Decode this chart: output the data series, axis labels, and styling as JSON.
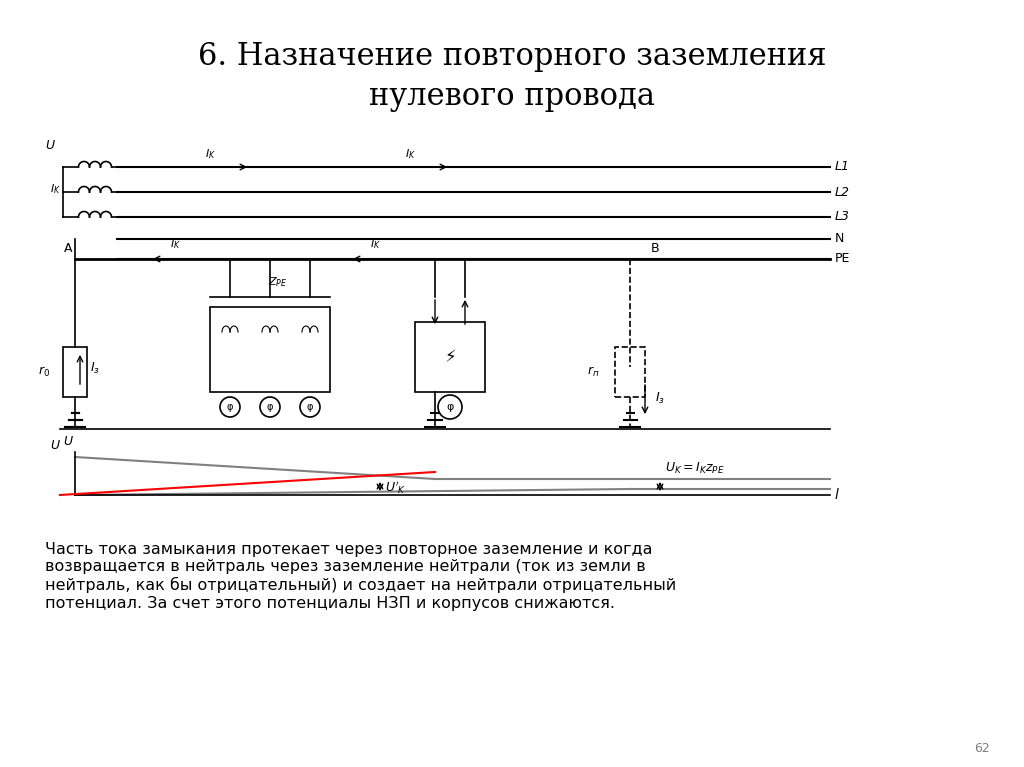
{
  "title_line1": "6. Назначение повторного заземления",
  "title_line2": "нулевого провода",
  "body_text": "Часть тока замыкания протекает через повторное заземление и когда\nвозвращается в нейтраль через заземление нейтрали (ток из земли в\nнейтраль, как бы отрицательный) и создает на нейтрали отрицательный\nпотенциал. За счет этого потенциалы НЗП и корпусов снижаются.",
  "page_num": "62",
  "bg_color": "#ffffff",
  "fg_color": "#000000"
}
